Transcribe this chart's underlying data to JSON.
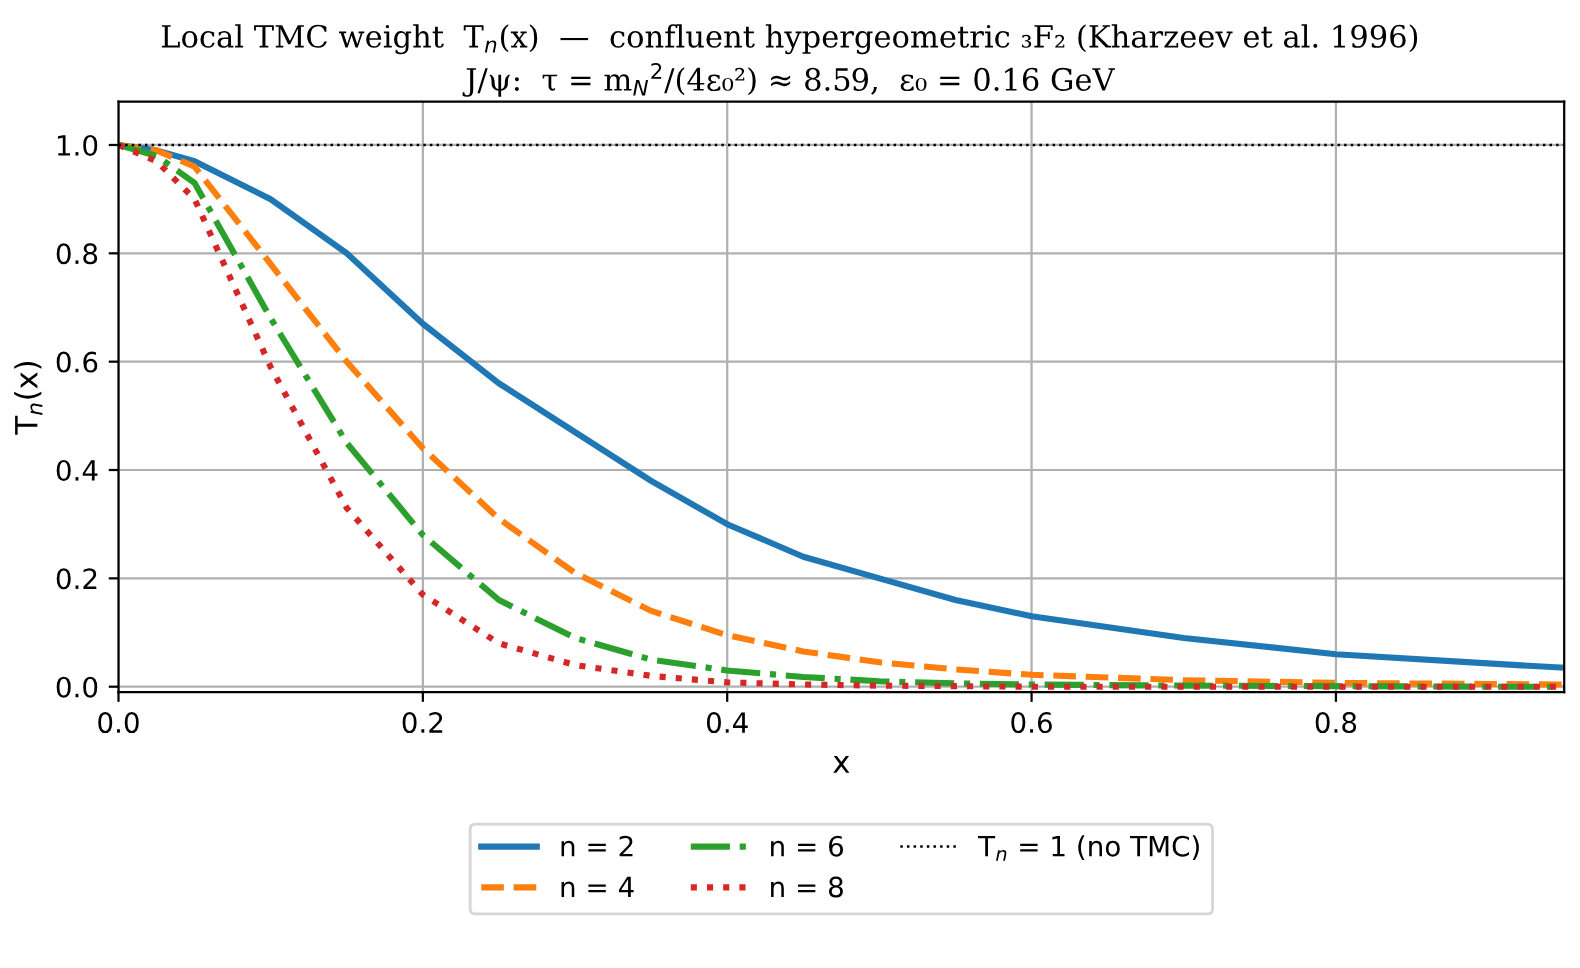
{
  "chart_data": {
    "type": "line",
    "title": "Local TMC weight  T$_{n}$(x)  —  confluent hypergeometric ₃F₂ (Kharzeev et al. 1996)",
    "subtitle": "J/ψ:  τ = m$_{N}$$^{2}$/(4ε₀²) ≈ 8.59,  ε₀ = 0.16 GeV",
    "xlabel": "x",
    "ylabel": "T$_{n}$(x)",
    "x": [
      0,
      0.025,
      0.05,
      0.1,
      0.15,
      0.2,
      0.25,
      0.3,
      0.35,
      0.4,
      0.45,
      0.5,
      0.55,
      0.6,
      0.7,
      0.8,
      0.9,
      0.95
    ],
    "series": [
      {
        "name": "n = 2",
        "color": "#1f77b4",
        "line_style": "solid",
        "values": [
          1,
          0.99,
          0.97,
          0.9,
          0.8,
          0.67,
          0.56,
          0.47,
          0.38,
          0.3,
          0.24,
          0.2,
          0.16,
          0.13,
          0.09,
          0.06,
          0.043,
          0.035
        ]
      },
      {
        "name": "n = 4",
        "color": "#ff7f0e",
        "line_style": "dashed",
        "values": [
          1,
          0.99,
          0.96,
          0.78,
          0.6,
          0.44,
          0.31,
          0.21,
          0.14,
          0.095,
          0.065,
          0.045,
          0.032,
          0.022,
          0.012,
          0.007,
          0.005,
          0.004
        ]
      },
      {
        "name": "n = 6",
        "color": "#2ca02c",
        "line_style": "dashdot",
        "values": [
          1,
          0.98,
          0.93,
          0.68,
          0.45,
          0.28,
          0.16,
          0.09,
          0.05,
          0.03,
          0.018,
          0.01,
          0.006,
          0.004,
          0.002,
          0.001,
          0,
          0
        ]
      },
      {
        "name": "n = 8",
        "color": "#d62728",
        "line_style": "dotted",
        "values": [
          1,
          0.97,
          0.9,
          0.59,
          0.33,
          0.17,
          0.08,
          0.04,
          0.02,
          0.008,
          0.004,
          0.002,
          0.001,
          0,
          0,
          0,
          0,
          0
        ]
      }
    ],
    "ref_lines": [
      {
        "axis": "y",
        "value": 1,
        "label": "T$_{n}$ = 1 (no TMC)",
        "color": "#000000",
        "line_style": "dotted"
      }
    ],
    "xlim": [
      0,
      0.95
    ],
    "ylim": [
      -0.01,
      1.08
    ],
    "xticks": [
      {
        "value": 0,
        "label": "0.0"
      },
      0.2,
      0.4,
      0.6,
      0.8
    ],
    "yticks": [
      {
        "value": 0,
        "label": "0.0"
      },
      0.2,
      0.4,
      0.6,
      0.8,
      {
        "value": 1,
        "label": "1.0"
      }
    ],
    "grid": true,
    "legend": "bottom"
  }
}
